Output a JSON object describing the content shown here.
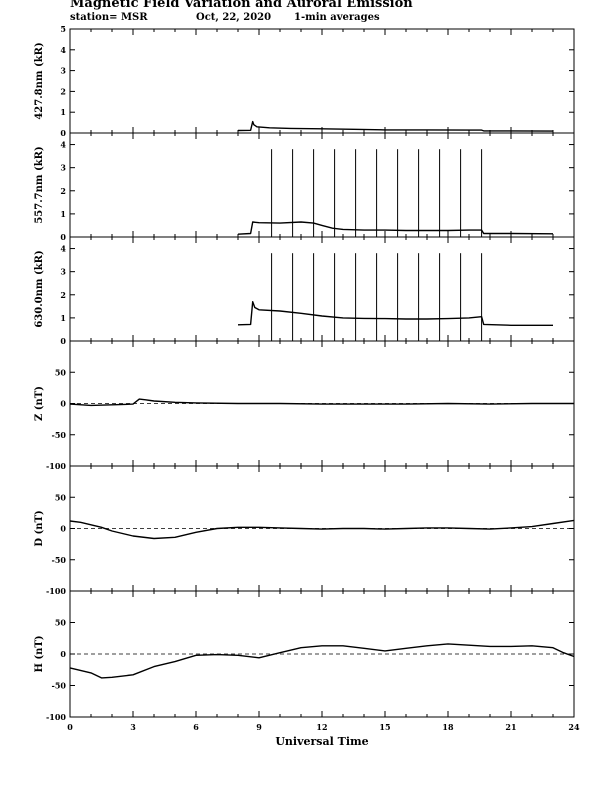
{
  "header": {
    "title": "Magnetic Field Variation and Auroral Emission",
    "station": "station= MSR",
    "date": "Oct, 22, 2020",
    "averaging": "1-min averages"
  },
  "colors": {
    "line": "#000000",
    "background": "#ffffff"
  },
  "chart_data": [
    {
      "type": "line",
      "ylabel": "427.8nm (kR)",
      "xlim": [
        0,
        24
      ],
      "ylim": [
        0,
        5
      ],
      "yticks": [
        0,
        1,
        2,
        3,
        4,
        5
      ],
      "series": [
        {
          "x": [
            8,
            8.6,
            8.7,
            8.75,
            8.9,
            9.5,
            10.5,
            12,
            13.5,
            15,
            17,
            19,
            19.6,
            19.7,
            21,
            23
          ],
          "values": [
            0.12,
            0.13,
            0.55,
            0.4,
            0.3,
            0.25,
            0.22,
            0.2,
            0.18,
            0.15,
            0.15,
            0.14,
            0.14,
            0.1,
            0.1,
            0.09
          ]
        }
      ]
    },
    {
      "type": "line",
      "ylabel": "557.7nm (kR)",
      "xlim": [
        0,
        24
      ],
      "ylim": [
        0,
        4.5
      ],
      "yticks": [
        0,
        1,
        2,
        3,
        4
      ],
      "spikes": {
        "x": [
          9.6,
          10.6,
          11.6,
          12.6,
          13.6,
          14.6,
          15.6,
          16.6,
          17.6,
          18.6,
          19.6
        ],
        "value": 3.8
      },
      "series": [
        {
          "x": [
            8,
            8.6,
            8.7,
            9,
            10,
            11,
            11.6,
            12,
            12.5,
            13,
            14,
            15,
            16,
            17,
            18,
            19,
            19.6,
            19.7,
            21,
            23
          ],
          "values": [
            0.12,
            0.15,
            0.65,
            0.62,
            0.6,
            0.65,
            0.6,
            0.5,
            0.38,
            0.33,
            0.3,
            0.3,
            0.28,
            0.28,
            0.28,
            0.3,
            0.3,
            0.15,
            0.15,
            0.14
          ]
        }
      ]
    },
    {
      "type": "line",
      "ylabel": "630.0nm (kR)",
      "xlim": [
        0,
        24
      ],
      "ylim": [
        0,
        4.5
      ],
      "yticks": [
        0,
        1,
        2,
        3,
        4
      ],
      "spikes": {
        "x": [
          9.6,
          10.6,
          11.6,
          12.6,
          13.6,
          14.6,
          15.6,
          16.6,
          17.6,
          18.6,
          19.6
        ],
        "value": 3.8
      },
      "series": [
        {
          "x": [
            8,
            8.6,
            8.7,
            8.8,
            9,
            10,
            11,
            12,
            13,
            14,
            15,
            16,
            17,
            18,
            19,
            19.6,
            19.7,
            21,
            23
          ],
          "values": [
            0.7,
            0.72,
            1.7,
            1.45,
            1.35,
            1.3,
            1.2,
            1.08,
            1.0,
            0.98,
            0.97,
            0.95,
            0.95,
            0.97,
            1.0,
            1.05,
            0.72,
            0.68,
            0.68
          ]
        }
      ]
    },
    {
      "type": "line",
      "ylabel": "Z (nT)",
      "xlim": [
        0,
        24
      ],
      "ylim": [
        -100,
        100
      ],
      "yticks": [
        -100,
        -50,
        0,
        50
      ],
      "zero_line": true,
      "series": [
        {
          "x": [
            0,
            1,
            2,
            3,
            3.3,
            3.6,
            4,
            5,
            6,
            8,
            10,
            12,
            14,
            16,
            18,
            20,
            22,
            24
          ],
          "values": [
            -1,
            -3,
            -2,
            -1,
            7,
            6,
            4,
            2,
            1,
            0,
            0,
            -1,
            -1,
            -1,
            0,
            -1,
            0,
            0
          ]
        }
      ]
    },
    {
      "type": "line",
      "ylabel": "D (nT)",
      "xlim": [
        0,
        24
      ],
      "ylim": [
        -100,
        100
      ],
      "yticks": [
        -100,
        -50,
        0,
        50
      ],
      "zero_line": true,
      "series": [
        {
          "x": [
            0,
            0.5,
            1,
            1.5,
            2,
            3,
            4,
            5,
            6,
            7,
            8,
            9,
            10,
            11,
            12,
            13,
            14,
            15,
            16,
            17,
            18,
            19,
            20,
            21,
            22,
            23,
            24
          ],
          "values": [
            12,
            10,
            6,
            2,
            -4,
            -12,
            -16,
            -14,
            -6,
            0,
            2,
            2,
            1,
            0,
            -1,
            0,
            0,
            -1,
            0,
            1,
            1,
            0,
            -1,
            1,
            3,
            8,
            13
          ]
        }
      ]
    },
    {
      "type": "line",
      "ylabel": "H (nT)",
      "xlim": [
        0,
        24
      ],
      "ylim": [
        -100,
        100
      ],
      "yticks": [
        -100,
        -50,
        0,
        50
      ],
      "zero_line": true,
      "xticks": [
        0,
        3,
        6,
        9,
        12,
        15,
        18,
        21,
        24
      ],
      "xlabel": "Universal Time",
      "series": [
        {
          "x": [
            0,
            0.5,
            1,
            1.5,
            2,
            3,
            4,
            5,
            6,
            7,
            8,
            9,
            10,
            11,
            12,
            13,
            14,
            15,
            16,
            17,
            18,
            19,
            20,
            21,
            22,
            23,
            23.5,
            24
          ],
          "values": [
            -22,
            -26,
            -30,
            -38,
            -37,
            -33,
            -20,
            -12,
            -2,
            -1,
            -2,
            -6,
            2,
            10,
            13,
            13,
            9,
            5,
            9,
            13,
            16,
            14,
            12,
            12,
            13,
            10,
            2,
            -4
          ]
        }
      ]
    }
  ]
}
